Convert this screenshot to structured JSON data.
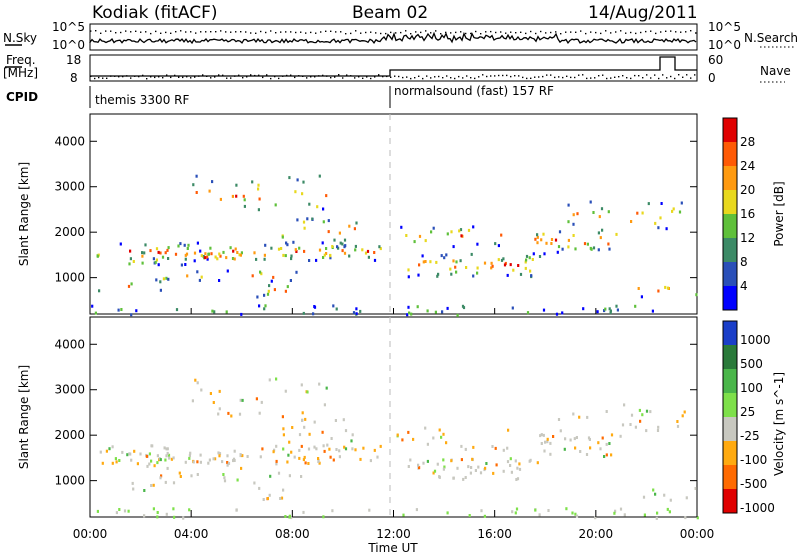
{
  "header": {
    "station": "Kodiak (fitACF)",
    "beam": "Beam 02",
    "date": "14/Aug/2011"
  },
  "top_panels": {
    "nsky_label": "N.Sky",
    "nsearch_label": "N.Search",
    "nsky_left_ticks": [
      "10^5",
      "10^0"
    ],
    "nsky_right_ticks": [
      "10^5",
      "10^0"
    ],
    "freq_label_1": "Freq.",
    "freq_label_2": "[MHz]",
    "freq_ticks": [
      "18",
      "8"
    ],
    "nave_ticks": [
      "60",
      "0"
    ],
    "nave_label": "Nave",
    "cpid_label": "CPID",
    "cpid_left": "themis 3300 RF",
    "cpid_right": "normalsound (fast) 157 RF"
  },
  "chart_data": [
    {
      "type": "heatmap",
      "name": "power",
      "ylabel": "Slant Range [km]",
      "yticks": [
        "1000",
        "2000",
        "3000",
        "4000"
      ],
      "ylim": [
        200,
        4600
      ],
      "colorbar_label": "Power [dB]",
      "colorbar_ticks": [
        "4",
        "8",
        "12",
        "16",
        "20",
        "24",
        "28"
      ],
      "colors": [
        "#0000ff",
        "#2a4fb8",
        "#3c8a66",
        "#5fc03a",
        "#e8d81e",
        "#ff9a10",
        "#ff5a05",
        "#e00000"
      ]
    },
    {
      "type": "heatmap",
      "name": "velocity",
      "ylabel": "Slant Range [km]",
      "yticks": [
        "1000",
        "2000",
        "3000",
        "4000"
      ],
      "ylim": [
        200,
        4600
      ],
      "colorbar_label": "Velocity [m s^-1]",
      "colorbar_ticks": [
        "1000",
        "500",
        "100",
        "25",
        "-25",
        "-100",
        "-500",
        "-1000"
      ],
      "colors": [
        "#1a3ec8",
        "#2a7a3a",
        "#4ab64a",
        "#7ee04a",
        "#c8c8c0",
        "#ffaa10",
        "#ff6a00",
        "#e00000"
      ]
    }
  ],
  "x_axis": {
    "ticks": [
      "00:00",
      "04:00",
      "08:00",
      "12:00",
      "16:00",
      "20:00",
      "00:00"
    ],
    "label": "Time UT"
  }
}
